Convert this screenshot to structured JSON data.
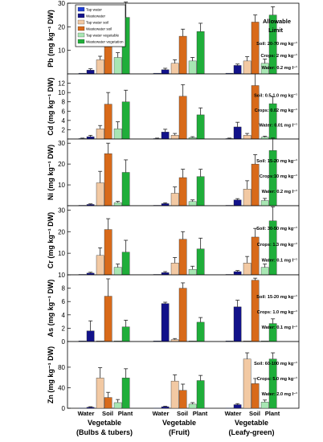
{
  "colors": {
    "tap_water": "#1f3fd6",
    "wastewater": "#12128a",
    "tap_water_soil": "#f2c9a3",
    "wastewater_soil": "#d86a1a",
    "tap_water_vegetable": "#a8e6b3",
    "wastewater_vegetable": "#1fae3a",
    "panel_bg": "#ffffff",
    "axis": "#000000"
  },
  "chart_data": {
    "type": "bar",
    "legend": [
      "Tap water",
      "Wastewater",
      "Tap water soil",
      "Wastewater soil",
      "Tap water vegetable",
      "Wastewater vegetation"
    ],
    "legend_position": "top-left of first panel",
    "groups": [
      {
        "line1": "Vegetable",
        "line2": "(Bulbs & tubers)"
      },
      {
        "line1": "Vegetable",
        "line2": "(Fruit)"
      },
      {
        "line1": "Vegetable",
        "line2": "(Leafy-green)"
      }
    ],
    "sub_categories": [
      "Water",
      "Soil",
      "Plant"
    ],
    "panels": [
      {
        "ylabel": "Pb (mg kg⁻¹ DW)",
        "ylim": [
          0,
          30
        ],
        "ticks": [
          0,
          10,
          20,
          30
        ],
        "tick_labels": [
          "",
          "10",
          "20",
          "30"
        ],
        "notes": [
          "Allowable",
          "Limit",
          "Soil: 20-70 mg kg⁻¹",
          "Crops: 2 mg kg⁻¹",
          "Water: 0.2 mg l⁻¹"
        ],
        "values": [
          [
            0.3,
            1.6,
            6.0,
            20.5,
            7.0,
            24.0
          ],
          [
            0.3,
            1.8,
            4.5,
            16.0,
            5.5,
            18.0
          ],
          [
            0.3,
            3.6,
            5.5,
            22.0,
            4.5,
            25.0
          ]
        ],
        "errors": [
          [
            0.2,
            0.6,
            1.5,
            4.0,
            2.0,
            6.5
          ],
          [
            0.2,
            0.6,
            1.5,
            3.0,
            1.5,
            3.5
          ],
          [
            0.2,
            0.6,
            1.8,
            3.0,
            1.8,
            3.5
          ]
        ]
      },
      {
        "ylabel": "Cd (mg kg⁻¹ DW)",
        "ylim": [
          0,
          14
        ],
        "ticks": [
          2,
          4,
          6,
          8,
          10,
          12
        ],
        "tick_labels": [
          "2",
          "4",
          "6",
          "8",
          "10",
          "12"
        ],
        "notes": [
          "Soil: 0.5-1.0 mg kg⁻¹",
          "Crops: 0.02 mg kg⁻¹",
          "Water: 0.01 mg l⁻¹"
        ],
        "values": [
          [
            0.1,
            0.5,
            2.2,
            7.5,
            2.2,
            8.0
          ],
          [
            0.1,
            1.5,
            0.8,
            9.2,
            0.3,
            5.2
          ],
          [
            0.1,
            2.6,
            0.8,
            11.5,
            0.4,
            7.6
          ]
        ],
        "errors": [
          [
            0.1,
            0.3,
            0.7,
            2.5,
            1.5,
            2.5
          ],
          [
            0.1,
            0.6,
            0.4,
            2.5,
            0.2,
            1.5
          ],
          [
            0.1,
            1.0,
            0.4,
            2.5,
            0.2,
            1.5
          ]
        ]
      },
      {
        "ylabel": "Ni (mg kg⁻¹ DW)",
        "ylim": [
          0,
          32
        ],
        "ticks": [
          0,
          10,
          20,
          30
        ],
        "tick_labels": [
          "",
          "10",
          "20",
          "30"
        ],
        "notes": [
          "Soil: 15-20 mg kg⁻¹",
          "Crops:10 mg kg⁻¹",
          "Water: 0.2 mg l⁻¹"
        ],
        "values": [
          [
            0.2,
            0.6,
            11.0,
            25.0,
            1.5,
            16.0
          ],
          [
            0.2,
            1.0,
            6.0,
            13.5,
            2.0,
            14.0
          ],
          [
            0.2,
            2.8,
            8.0,
            20.0,
            2.5,
            26.5
          ]
        ],
        "errors": [
          [
            0.1,
            0.3,
            5.5,
            5.0,
            0.6,
            6.0
          ],
          [
            0.1,
            0.4,
            3.0,
            4.0,
            0.8,
            3.5
          ],
          [
            0.1,
            0.6,
            4.0,
            4.5,
            1.0,
            6.0
          ]
        ]
      },
      {
        "ylabel": "Cr (mg kg⁻¹ DW)",
        "ylim": [
          0,
          32
        ],
        "ticks": [
          0,
          10,
          20,
          30
        ],
        "tick_labels": [
          "",
          "10",
          "20",
          "30"
        ],
        "notes": [
          "Soil: 30-50 mg kg⁻¹",
          "Crops: 1.3 mg kg⁻¹",
          "Water: 0.1 mg l⁻¹"
        ],
        "values": [
          [
            0.2,
            0.8,
            9.0,
            21.0,
            3.5,
            10.5
          ],
          [
            0.2,
            1.0,
            5.5,
            16.5,
            2.5,
            12.0
          ],
          [
            0.2,
            1.5,
            5.5,
            17.5,
            3.5,
            25.0
          ]
        ],
        "errors": [
          [
            0.1,
            0.4,
            3.5,
            5.0,
            1.5,
            5.5
          ],
          [
            0.1,
            0.5,
            2.5,
            3.5,
            1.5,
            5.0
          ],
          [
            0.1,
            0.5,
            3.0,
            4.0,
            1.5,
            6.5
          ]
        ]
      },
      {
        "ylabel": "As (mg kg⁻¹ DW)",
        "ylim": [
          0,
          10
        ],
        "ticks": [
          0,
          2,
          4,
          6,
          8,
          10
        ],
        "tick_labels": [
          "0",
          "2",
          "4",
          "6",
          "8",
          "10"
        ],
        "notes": [
          "Soil: 15-20 mg kg⁻¹",
          "Crops: 1.0 mg kg⁻¹",
          "Water: 0.1 mg l⁻¹"
        ],
        "values": [
          [
            0.1,
            1.6,
            0.1,
            6.8,
            0.1,
            2.2
          ],
          [
            0.1,
            5.7,
            0.3,
            8.0,
            0.1,
            2.9
          ],
          [
            0.1,
            5.2,
            0.1,
            9.2,
            0.1,
            2.7
          ]
        ],
        "errors": [
          [
            0.05,
            1.5,
            0.05,
            2.6,
            0.05,
            1.0
          ],
          [
            0.05,
            0.2,
            0.15,
            0.8,
            0.05,
            0.7
          ],
          [
            0.05,
            1.0,
            0.05,
            0.3,
            0.05,
            0.7
          ]
        ]
      },
      {
        "ylabel": "Zn (mg kg⁻¹ DW)",
        "ylim": [
          0,
          130
        ],
        "ticks": [
          0,
          40,
          80
        ],
        "tick_labels": [
          "0",
          "40",
          "80"
        ],
        "notes": [
          "Soil: 60-100 mg kg⁻¹",
          "Crops: 5.0 mg kg⁻¹",
          "Water: 2.0 mg l⁻¹"
        ],
        "values": [
          [
            0.5,
            2.0,
            59.0,
            21.0,
            11.0,
            59.0
          ],
          [
            0.5,
            3.0,
            53.0,
            35.0,
            8.0,
            54.0
          ],
          [
            0.5,
            7.0,
            96.0,
            48.0,
            12.0,
            96.0
          ]
        ],
        "errors": [
          [
            0.3,
            1.0,
            20.0,
            10.0,
            6.0,
            18.0
          ],
          [
            0.3,
            1.0,
            12.0,
            12.0,
            3.0,
            10.0
          ],
          [
            0.3,
            2.0,
            12.0,
            10.0,
            4.0,
            12.0
          ]
        ]
      }
    ]
  }
}
